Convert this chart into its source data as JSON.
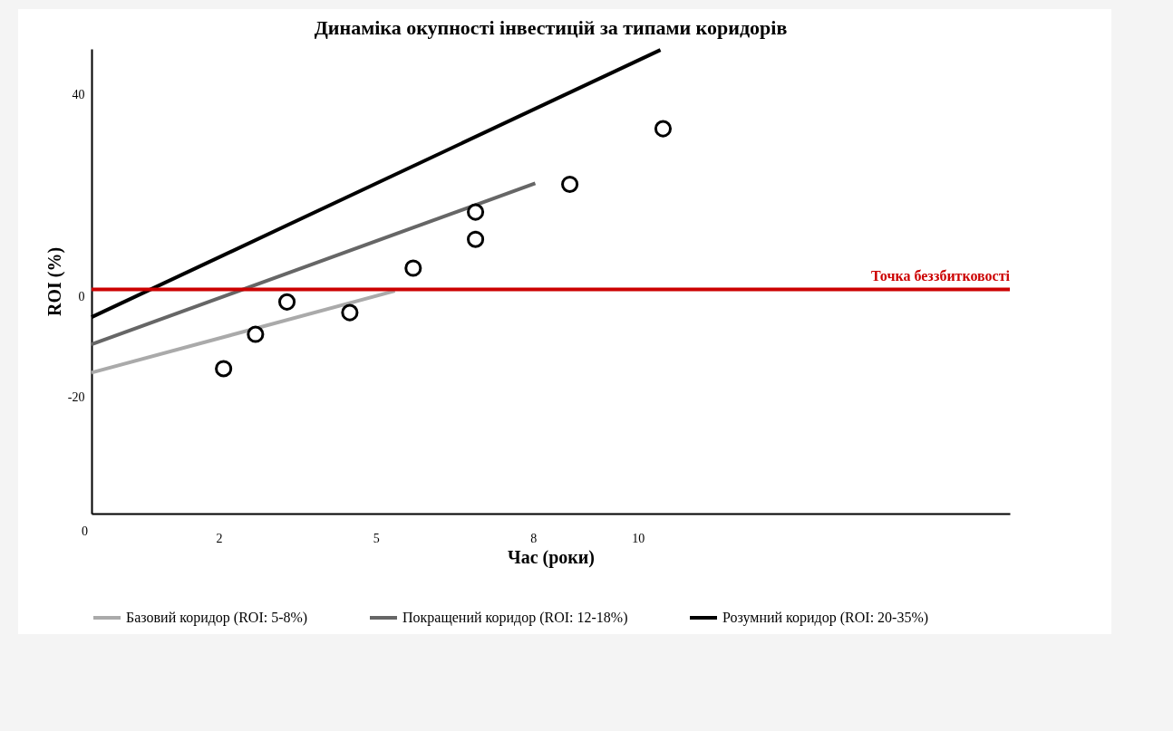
{
  "chart_data": {
    "type": "line",
    "title": "Динаміка окупності інвестицій за типами коридорів",
    "xlabel": "Час (роки)",
    "ylabel": "ROI (%)",
    "annotations": [
      "0"
    ],
    "xlim": [
      -0.43,
      17.1
    ],
    "ylim": [
      -43,
      49
    ],
    "xticks": [
      2,
      5,
      8,
      10
    ],
    "yticks": [
      -20,
      0,
      40
    ],
    "grid": false,
    "legend": "bottom",
    "series": [
      {
        "name": "Базовий коридор (ROI: 5-8%)",
        "color": "#aaaaaa",
        "x": [
          -0.43,
          5.36
        ],
        "values": [
          -15.1,
          1.1
        ]
      },
      {
        "name": "Покращений коридор (ROI: 12-18%)",
        "color": "#666666",
        "x": [
          -0.43,
          8.04
        ],
        "values": [
          -9.5,
          22.4
        ]
      },
      {
        "name": "Розумний коридор (ROI: 20-35%)",
        "color": "#000000",
        "x": [
          -0.43,
          10.43
        ],
        "values": [
          -4.1,
          48.8
        ]
      },
      {
        "type": "scatter",
        "color": "#000000",
        "marker": "circle",
        "x": [
          2.09,
          2.7,
          3.3,
          4.5,
          5.71,
          6.9,
          6.9,
          8.7,
          10.48
        ],
        "values": [
          -14.3,
          -7.5,
          -1.1,
          -3.2,
          5.6,
          11.3,
          16.7,
          22.2,
          33.2
        ]
      }
    ],
    "ref_lines": [
      {
        "axis": "y",
        "value": 1.4,
        "label": "Точка беззбитковості",
        "color": "#cc0000"
      }
    ]
  }
}
